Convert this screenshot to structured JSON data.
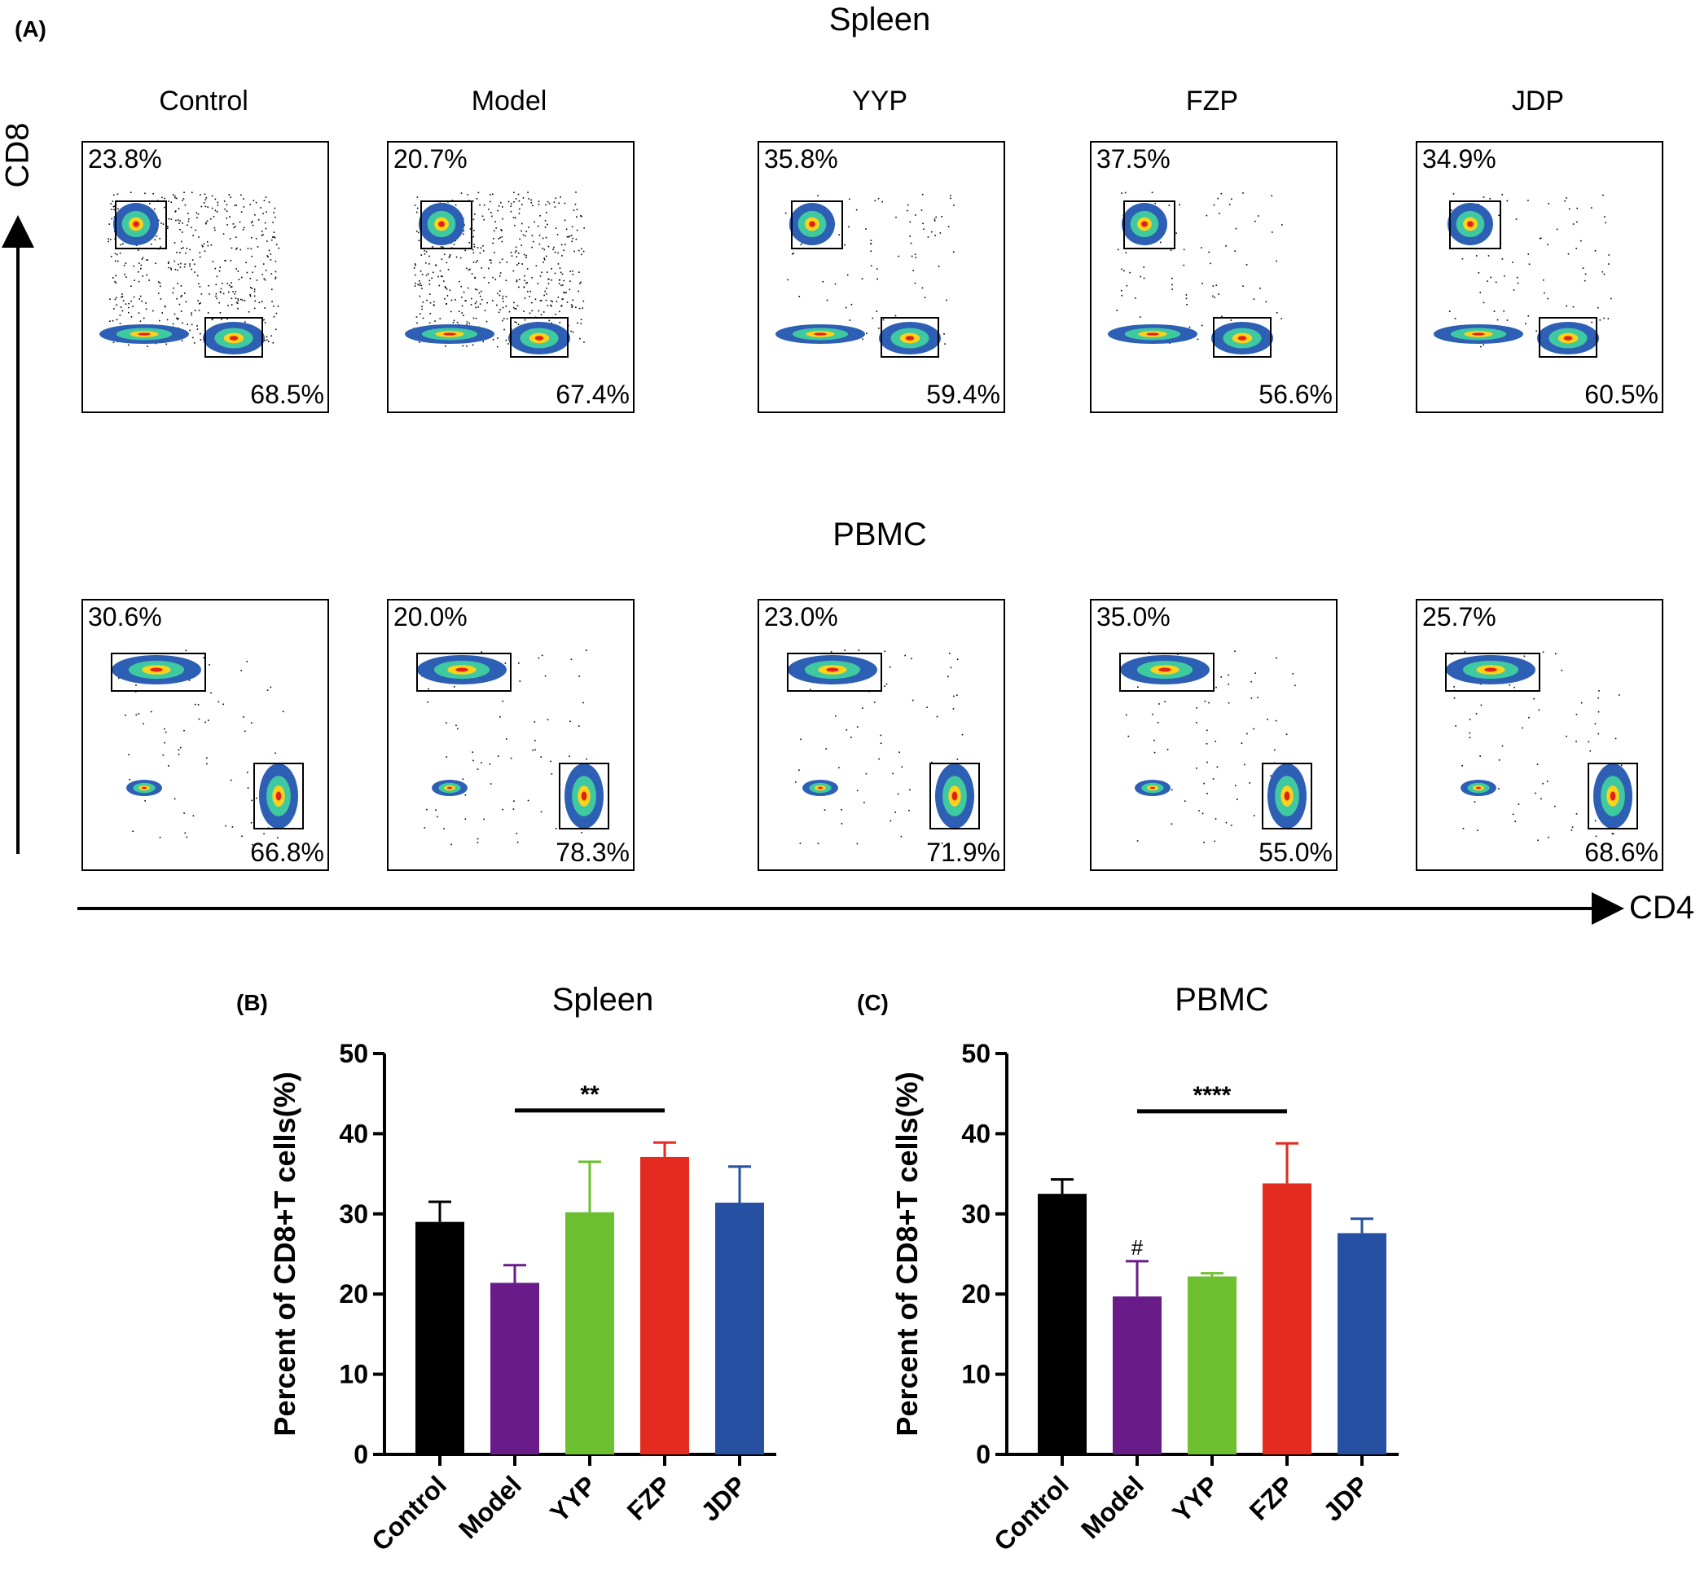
{
  "figure": {
    "panel_a_label": "(A)",
    "spleen_title": "Spleen",
    "pbmc_title": "PBMC",
    "y_axis_label": "CD8",
    "x_axis_label": "CD4",
    "groups": [
      "Control",
      "Model",
      "YYP",
      "FZP",
      "JDP"
    ],
    "spleen_cd8_pct": [
      "23.8%",
      "20.7%",
      "35.8%",
      "37.5%",
      "34.9%"
    ],
    "spleen_cd4_pct": [
      "68.5%",
      "67.4%",
      "59.4%",
      "56.6%",
      "60.5%"
    ],
    "pbmc_cd8_pct": [
      "30.6%",
      "20.0%",
      "23.0%",
      "35.0%",
      "25.7%"
    ],
    "pbmc_cd4_pct": [
      "66.8%",
      "78.3%",
      "71.9%",
      "55.0%",
      "68.6%"
    ]
  },
  "colors": {
    "Control": "#000000",
    "Model": "#6a1b8a",
    "YYP": "#6cbf2e",
    "FZP": "#e32b1f",
    "JDP": "#2650a2",
    "density_low": "#2d5fb4",
    "density_mid": "#3fc9a0",
    "density_high": "#ffd21a",
    "density_peak": "#e32019"
  },
  "chart_data": [
    {
      "panel": "(B)",
      "type": "bar",
      "title": "Spleen",
      "ylabel": "Percent of CD8+T cells(%)",
      "ylim": [
        0,
        50
      ],
      "yticks": [
        0,
        10,
        20,
        30,
        40,
        50
      ],
      "categories": [
        "Control",
        "Model",
        "YYP",
        "FZP",
        "JDP"
      ],
      "values": [
        29.0,
        21.4,
        30.2,
        37.1,
        31.4
      ],
      "errors": [
        2.5,
        2.2,
        6.3,
        1.8,
        4.5
      ],
      "significance": [
        {
          "from": "Model",
          "to": "FZP",
          "label": "**"
        }
      ],
      "bar_annotations": []
    },
    {
      "panel": "(C)",
      "type": "bar",
      "title": "PBMC",
      "ylabel": "Percent of CD8+T cells(%)",
      "ylim": [
        0,
        50
      ],
      "yticks": [
        0,
        10,
        20,
        30,
        40,
        50
      ],
      "categories": [
        "Control",
        "Model",
        "YYP",
        "FZP",
        "JDP"
      ],
      "values": [
        32.5,
        19.7,
        22.2,
        33.8,
        27.6
      ],
      "errors": [
        1.8,
        4.4,
        0.4,
        5.0,
        1.8
      ],
      "significance": [
        {
          "from": "Model",
          "to": "FZP",
          "label": "****"
        }
      ],
      "bar_annotations": [
        {
          "category": "Model",
          "label": "#"
        }
      ]
    }
  ]
}
